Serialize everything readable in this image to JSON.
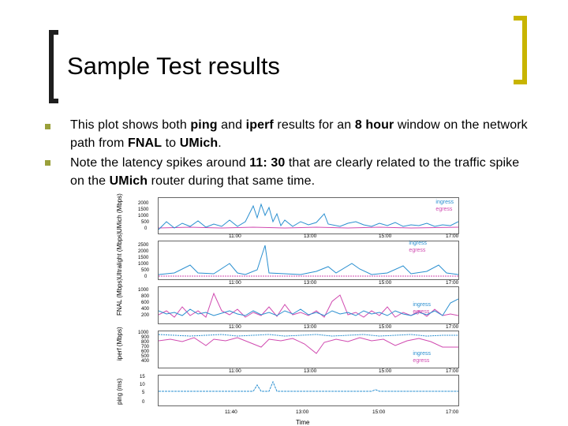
{
  "title": "Sample Test results",
  "bullets": [
    {
      "parts": [
        " This plot shows both ",
        "ping",
        " and ",
        "iperf",
        " results for an ",
        "8 hour",
        " window on the network path from ",
        "FNAL",
        " to ",
        "UMich",
        "."
      ]
    },
    {
      "parts": [
        " Note the latency spikes around ",
        "11: 30",
        " that are clearly related to the traffic spike on the ",
        "UMich",
        " router during that same time."
      ]
    }
  ],
  "figure": {
    "panels": [
      {
        "ylabel": "UMich (Mbps)",
        "ticks": [
          "2000",
          "1500",
          "1000",
          "500",
          "0"
        ],
        "legend": [
          "ingress",
          "egress"
        ],
        "xticks": [
          "11:00",
          "13:00",
          "15:00",
          "17:00"
        ]
      },
      {
        "ylabel": "Ultralight (Mbps)",
        "ticks": [
          "2500",
          "2000",
          "1500",
          "1000",
          "500",
          "0"
        ],
        "legend": [
          "ingress",
          "egress"
        ],
        "xticks": [
          "11:00",
          "13:00",
          "15:00",
          "17:00"
        ]
      },
      {
        "ylabel": "FNAL (Mbps)",
        "ticks": [
          "1000",
          "800",
          "600",
          "400",
          "200"
        ],
        "legend": [
          "ingress",
          "egress"
        ],
        "xticks": [
          "11:00",
          "13:00",
          "15:00",
          "17:00"
        ]
      },
      {
        "ylabel": "iperf (Mbps)",
        "ticks": [
          "1000",
          "900",
          "800",
          "700",
          "600",
          "500",
          "400"
        ],
        "legend": [
          "ingress",
          "egress"
        ],
        "xticks": [
          "11:00",
          "13:00",
          "15:00",
          "17:00"
        ]
      },
      {
        "ylabel": "ping (ms)",
        "ticks": [
          "15",
          "10",
          "5",
          "0"
        ],
        "legend": [],
        "xticks": [
          "11:40",
          "13:00",
          "15:00",
          "17:00"
        ]
      }
    ],
    "xlabel": "Time",
    "colors": {
      "ingress": "#2a8fd0",
      "egress": "#d04ab0",
      "bullet": "#9aa03a",
      "bracket_right": "#c8b400"
    }
  }
}
